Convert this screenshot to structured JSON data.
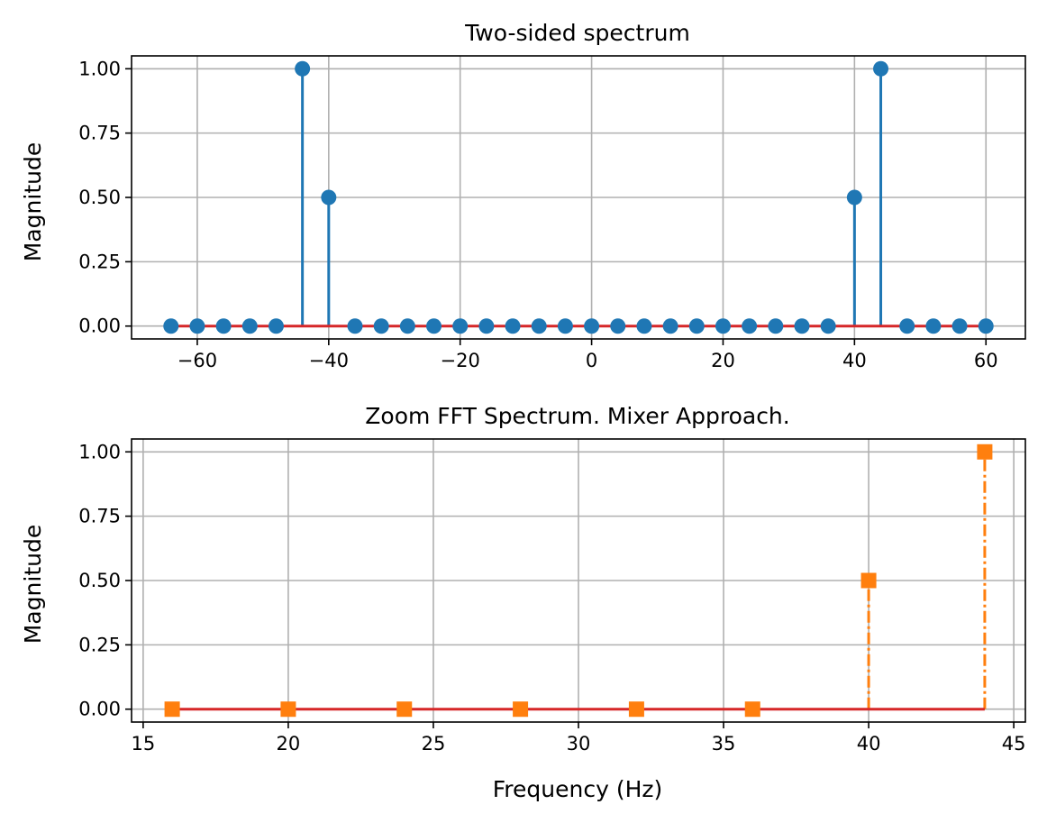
{
  "chart_data": [
    {
      "type": "stem",
      "title": "Two-sided spectrum",
      "xlabel": "",
      "ylabel": "Magnitude",
      "xlim": [
        -70,
        66
      ],
      "ylim": [
        -0.05,
        1.05
      ],
      "xticks": [
        -60,
        -40,
        -20,
        0,
        20,
        40,
        60
      ],
      "xtick_labels": [
        "−60",
        "−40",
        "−20",
        "0",
        "20",
        "40",
        "60"
      ],
      "yticks": [
        0,
        0.25,
        0.5,
        0.75,
        1.0
      ],
      "ytick_labels": [
        "0.00",
        "0.25",
        "0.50",
        "0.75",
        "1.00"
      ],
      "grid": true,
      "stem_color": "#1f77b4",
      "baseline_color": "#d62728",
      "marker": "circle",
      "line_style": "solid",
      "x": [
        -64,
        -60,
        -56,
        -52,
        -48,
        -44,
        -40,
        -36,
        -32,
        -28,
        -24,
        -20,
        -16,
        -12,
        -8,
        -4,
        0,
        4,
        8,
        12,
        16,
        20,
        24,
        28,
        32,
        36,
        40,
        44,
        48,
        52,
        56,
        60
      ],
      "y": [
        0,
        0,
        0,
        0,
        0,
        1.0,
        0.5,
        0,
        0,
        0,
        0,
        0,
        0,
        0,
        0,
        0,
        0,
        0,
        0,
        0,
        0,
        0,
        0,
        0,
        0,
        0,
        0.5,
        1.0,
        0,
        0,
        0,
        0
      ]
    },
    {
      "type": "stem",
      "title": "Zoom FFT Spectrum. Mixer Approach.",
      "xlabel": "Frequency (Hz)",
      "ylabel": "Magnitude",
      "xlim": [
        14.6,
        45.4
      ],
      "ylim": [
        -0.05,
        1.05
      ],
      "xticks": [
        15,
        20,
        25,
        30,
        35,
        40,
        45
      ],
      "xtick_labels": [
        "15",
        "20",
        "25",
        "30",
        "35",
        "40",
        "45"
      ],
      "yticks": [
        0,
        0.25,
        0.5,
        0.75,
        1.0
      ],
      "ytick_labels": [
        "0.00",
        "0.25",
        "0.50",
        "0.75",
        "1.00"
      ],
      "grid": true,
      "stem_color": "#ff7f0e",
      "baseline_color": "#d62728",
      "marker": "square",
      "line_style": "dashdot",
      "x": [
        16,
        20,
        24,
        28,
        32,
        36,
        40,
        44
      ],
      "y": [
        0,
        0,
        0,
        0,
        0,
        0,
        0.5,
        1.0
      ]
    }
  ]
}
